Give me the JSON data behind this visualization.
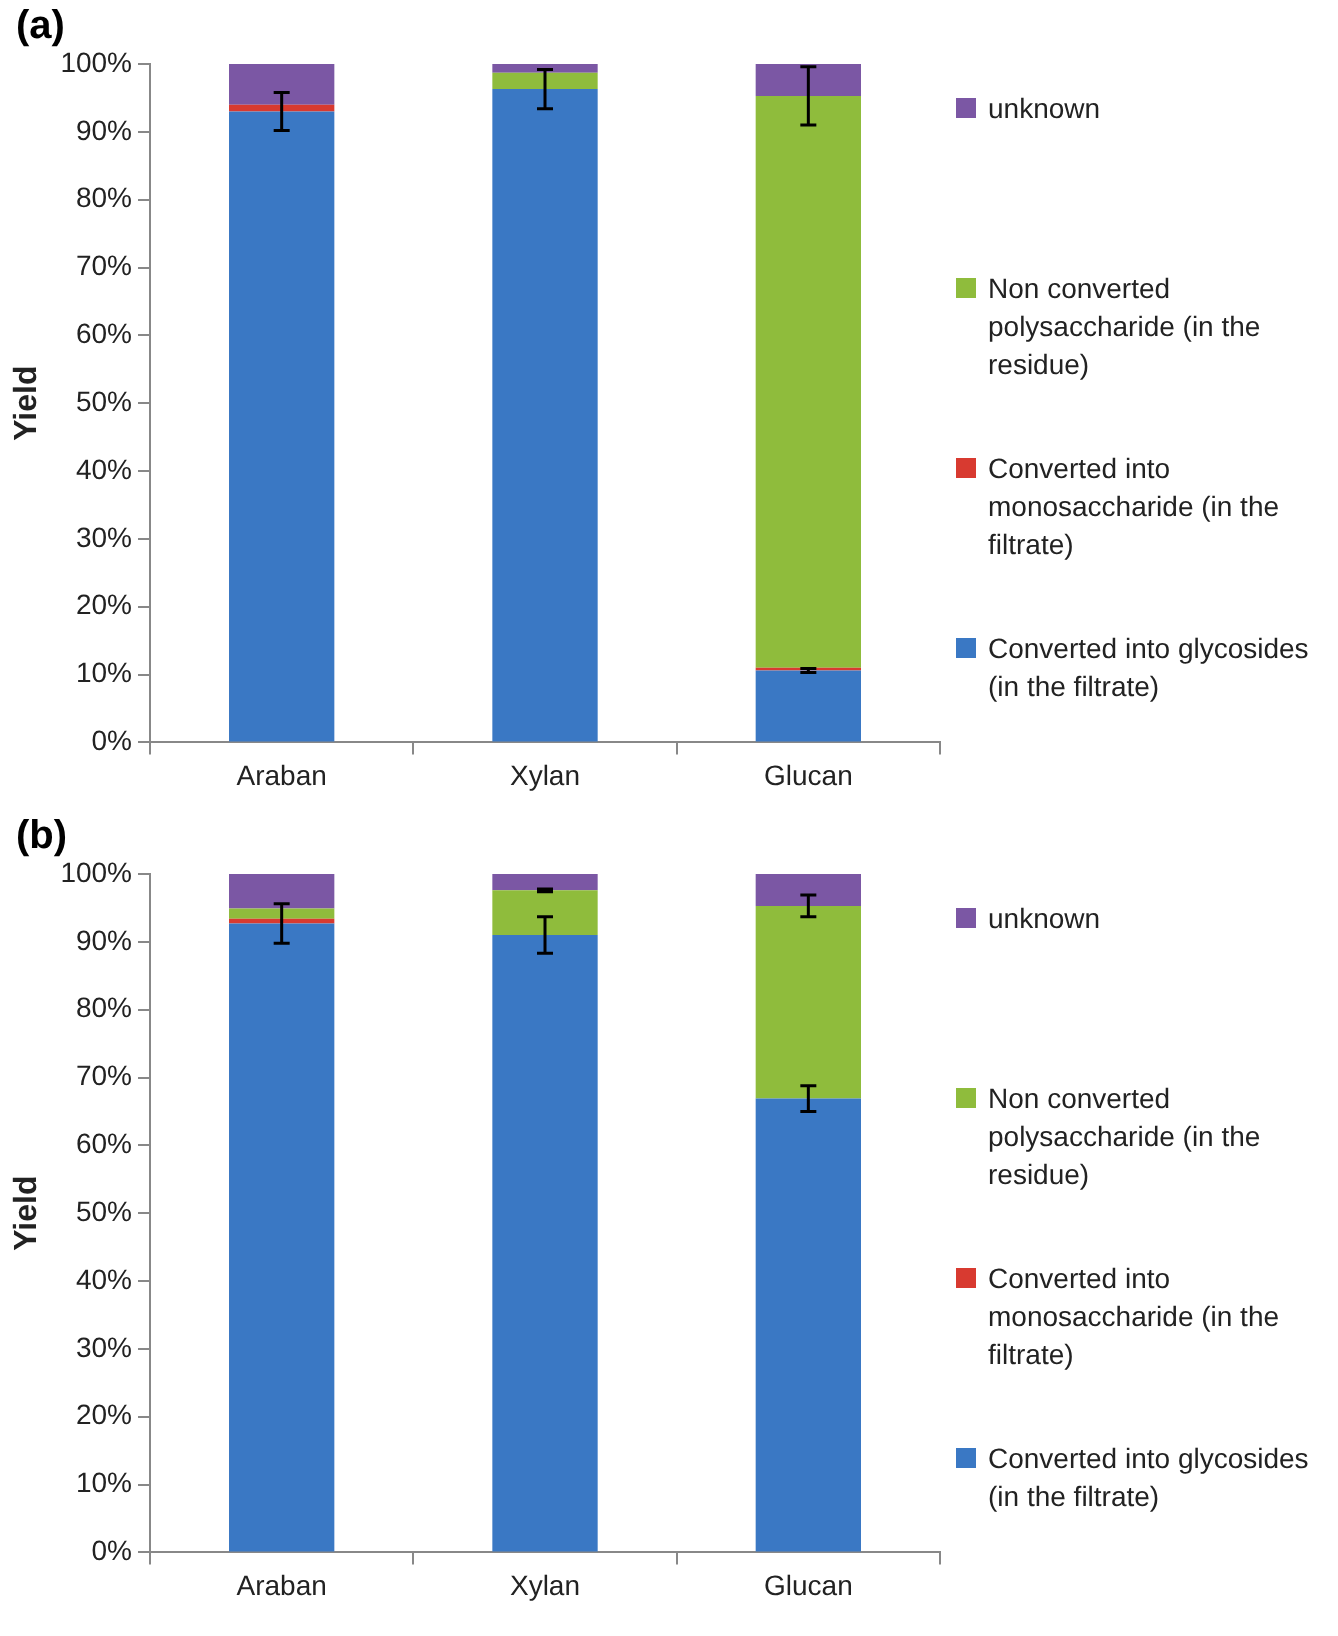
{
  "chart_data": [
    {
      "type": "bar",
      "title": "(a)",
      "ylabel": "Yield",
      "categories": [
        "Araban",
        "Xylan",
        "Glucan"
      ],
      "stacked": true,
      "legend": "right",
      "grid": false,
      "ylim": [
        0,
        100
      ],
      "yticks": [
        {
          "value": 0,
          "label": "0%"
        },
        {
          "value": 10,
          "label": "10%"
        },
        {
          "value": 20,
          "label": "20%"
        },
        {
          "value": 30,
          "label": "30%"
        },
        {
          "value": 40,
          "label": "40%"
        },
        {
          "value": 50,
          "label": "50%"
        },
        {
          "value": 60,
          "label": "60%"
        },
        {
          "value": 70,
          "label": "70%"
        },
        {
          "value": 80,
          "label": "80%"
        },
        {
          "value": 90,
          "label": "90%"
        },
        {
          "value": 100,
          "label": "100%"
        }
      ],
      "series": [
        {
          "name": "Converted into glycosides (in the filtrate)",
          "color": "#3a78c4",
          "values": [
            93,
            96.3,
            10.6
          ],
          "errors": [
            2.8,
            2.9,
            0.3
          ]
        },
        {
          "name": "Converted into monosaccharide (in the filtrate)",
          "color": "#d83a30",
          "values": [
            1,
            0,
            0.4
          ]
        },
        {
          "name": "Non converted polysaccharide (in the residue)",
          "color": "#8fbc3c",
          "values": [
            0,
            2.4,
            84.3
          ],
          "errors": [
            null,
            null,
            4.3
          ]
        },
        {
          "name": "unknown",
          "color": "#7b57a4",
          "values": [
            6,
            1.3,
            4.7
          ]
        }
      ]
    },
    {
      "type": "bar",
      "title": "(b)",
      "ylabel": "Yield",
      "categories": [
        "Araban",
        "Xylan",
        "Glucan"
      ],
      "stacked": true,
      "legend": "right",
      "grid": false,
      "ylim": [
        0,
        100
      ],
      "yticks": [
        {
          "value": 0,
          "label": "0%"
        },
        {
          "value": 10,
          "label": "10%"
        },
        {
          "value": 20,
          "label": "20%"
        },
        {
          "value": 30,
          "label": "30%"
        },
        {
          "value": 40,
          "label": "40%"
        },
        {
          "value": 50,
          "label": "50%"
        },
        {
          "value": 60,
          "label": "60%"
        },
        {
          "value": 70,
          "label": "70%"
        },
        {
          "value": 80,
          "label": "80%"
        },
        {
          "value": 90,
          "label": "90%"
        },
        {
          "value": 100,
          "label": "100%"
        }
      ],
      "series": [
        {
          "name": "Converted into glycosides (in the filtrate)",
          "color": "#3a78c4",
          "values": [
            92.7,
            91,
            66.9
          ],
          "errors": [
            2.9,
            2.7,
            1.9
          ]
        },
        {
          "name": "Converted into monosaccharide (in the filtrate)",
          "color": "#d83a30",
          "values": [
            0.7,
            0,
            0
          ]
        },
        {
          "name": "Non converted polysaccharide (in the residue)",
          "color": "#8fbc3c",
          "values": [
            1.5,
            6.6,
            28.4
          ],
          "errors": [
            null,
            0.2,
            1.6
          ]
        },
        {
          "name": "unknown",
          "color": "#7b57a4",
          "values": [
            5.1,
            2.4,
            4.7
          ]
        }
      ]
    }
  ]
}
